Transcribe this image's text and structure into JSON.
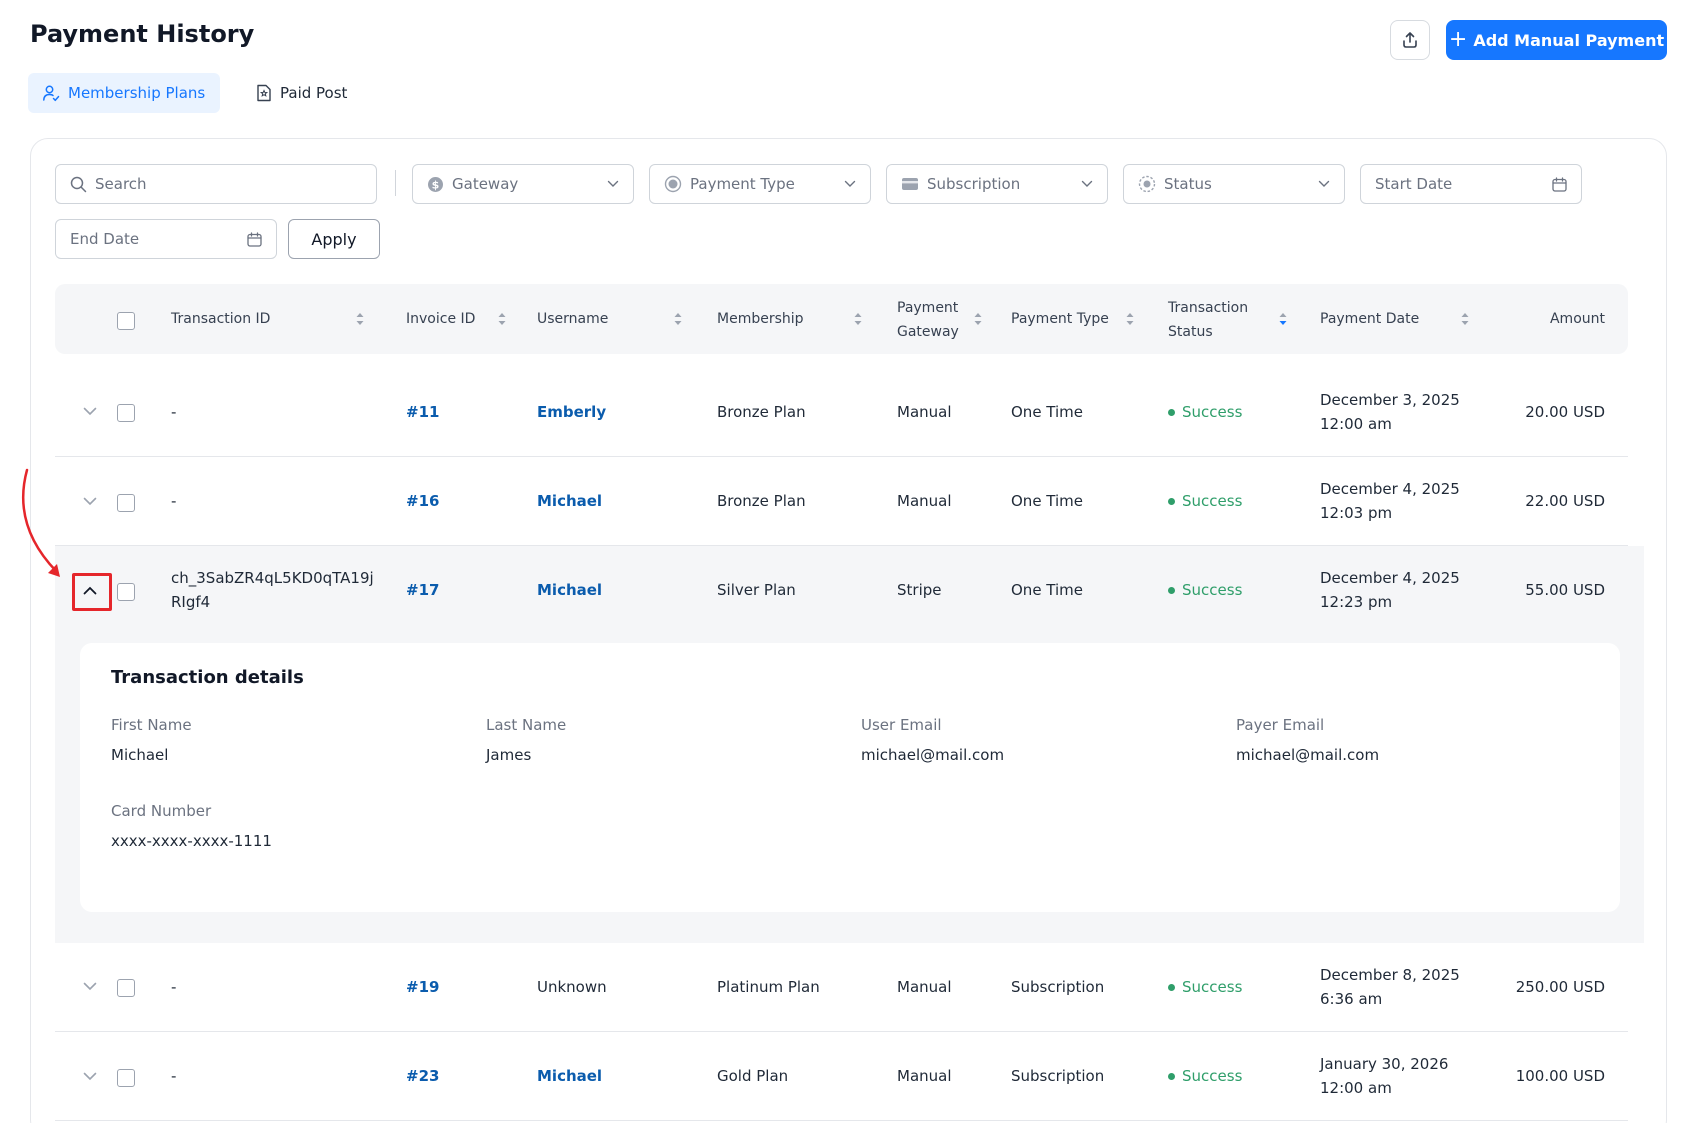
{
  "header": {
    "title": "Payment History",
    "add_button_label": "Add Manual Payment",
    "export_icon": "upload-icon"
  },
  "tabs": [
    {
      "label": "Membership Plans",
      "icon": "user-plan-icon",
      "active": true
    },
    {
      "label": "Paid Post",
      "icon": "document-icon",
      "active": false
    }
  ],
  "filters": {
    "search_placeholder": "Search",
    "gateway": "Gateway",
    "payment_type": "Payment Type",
    "subscription": "Subscription",
    "status": "Status",
    "start_date": "Start Date",
    "end_date": "End Date",
    "apply_label": "Apply"
  },
  "table": {
    "columns": {
      "transaction_id": "Transaction ID",
      "invoice_id": "Invoice ID",
      "username": "Username",
      "membership": "Membership",
      "payment_gateway_1": "Payment",
      "payment_gateway_2": "Gateway",
      "payment_type": "Payment Type",
      "transaction_status_1": "Transaction",
      "transaction_status_2": "Status",
      "payment_date": "Payment Date",
      "amount": "Amount"
    },
    "rows": [
      {
        "transaction_id_1": "-",
        "transaction_id_2": "",
        "invoice": "#11",
        "username": "Emberly",
        "membership": "Bronze Plan",
        "gateway": "Manual",
        "type": "One Time",
        "status": "Success",
        "date": "December 3, 2025",
        "time": "12:00 am",
        "amount": "20.00 USD"
      },
      {
        "transaction_id_1": "-",
        "transaction_id_2": "",
        "invoice": "#16",
        "username": "Michael",
        "membership": "Bronze Plan",
        "gateway": "Manual",
        "type": "One Time",
        "status": "Success",
        "date": "December 4, 2025",
        "time": "12:03 pm",
        "amount": "22.00 USD"
      },
      {
        "transaction_id_1": "ch_3SabZR4qL5KD0qTA19j",
        "transaction_id_2": "RIgf4",
        "invoice": "#17",
        "username": "Michael",
        "membership": "Silver Plan",
        "gateway": "Stripe",
        "type": "One Time",
        "status": "Success",
        "date": "December 4, 2025",
        "time": "12:23 pm",
        "amount": "55.00 USD"
      },
      {
        "transaction_id_1": "-",
        "transaction_id_2": "",
        "invoice": "#19",
        "username": "Unknown",
        "membership": "Platinum Plan",
        "gateway": "Manual",
        "type": "Subscription",
        "status": "Success",
        "date": "December 8, 2025",
        "time": "6:36 am",
        "amount": "250.00 USD"
      },
      {
        "transaction_id_1": "-",
        "transaction_id_2": "",
        "invoice": "#23",
        "username": "Michael",
        "membership": "Gold Plan",
        "gateway": "Manual",
        "type": "Subscription",
        "status": "Success",
        "date": "January 30, 2026",
        "time": "12:00 am",
        "amount": "100.00 USD"
      }
    ]
  },
  "details": {
    "title": "Transaction details",
    "first_name_label": "First Name",
    "first_name": "Michael",
    "last_name_label": "Last Name",
    "last_name": "James",
    "user_email_label": "User Email",
    "user_email": "michael@mail.com",
    "payer_email_label": "Payer Email",
    "payer_email": "michael@mail.com",
    "card_number_label": "Card Number",
    "card_number": "xxxx-xxxx-xxxx-1111"
  },
  "colors": {
    "primary": "#1677ff",
    "link": "#0b5cad",
    "success": "#2f9e6a",
    "highlight": "#e5262b"
  }
}
